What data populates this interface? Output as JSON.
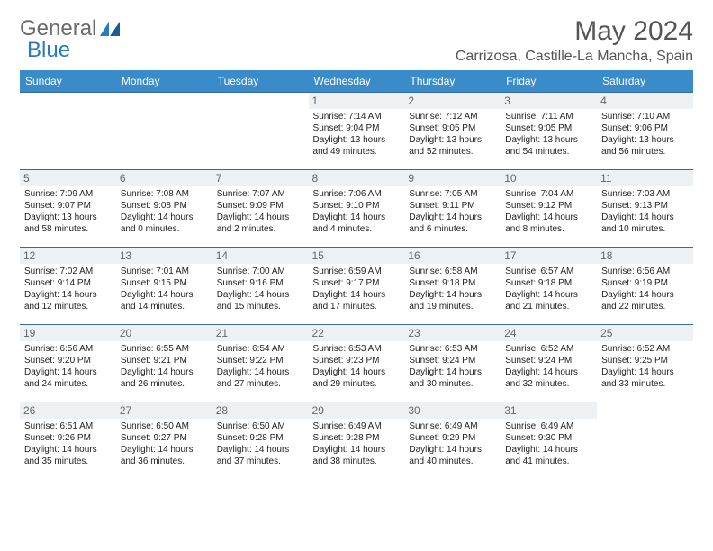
{
  "brand": {
    "part1": "General",
    "part2": "Blue"
  },
  "title": "May 2024",
  "location": "Carrizosa, Castille-La Mancha, Spain",
  "colors": {
    "header_bg": "#3a8bc9",
    "header_text": "#ffffff",
    "row_border": "#3a6a9a",
    "daynum_bg": "#eef1f3",
    "daynum_text": "#666666",
    "body_text": "#222222",
    "brand_gray": "#6b6b6b",
    "brand_blue": "#2a7abf"
  },
  "weekdays": [
    "Sunday",
    "Monday",
    "Tuesday",
    "Wednesday",
    "Thursday",
    "Friday",
    "Saturday"
  ],
  "weeks": [
    [
      {
        "day": "",
        "sunrise": "",
        "sunset": "",
        "daylight": ""
      },
      {
        "day": "",
        "sunrise": "",
        "sunset": "",
        "daylight": ""
      },
      {
        "day": "",
        "sunrise": "",
        "sunset": "",
        "daylight": ""
      },
      {
        "day": "1",
        "sunrise": "Sunrise: 7:14 AM",
        "sunset": "Sunset: 9:04 PM",
        "daylight": "Daylight: 13 hours and 49 minutes."
      },
      {
        "day": "2",
        "sunrise": "Sunrise: 7:12 AM",
        "sunset": "Sunset: 9:05 PM",
        "daylight": "Daylight: 13 hours and 52 minutes."
      },
      {
        "day": "3",
        "sunrise": "Sunrise: 7:11 AM",
        "sunset": "Sunset: 9:05 PM",
        "daylight": "Daylight: 13 hours and 54 minutes."
      },
      {
        "day": "4",
        "sunrise": "Sunrise: 7:10 AM",
        "sunset": "Sunset: 9:06 PM",
        "daylight": "Daylight: 13 hours and 56 minutes."
      }
    ],
    [
      {
        "day": "5",
        "sunrise": "Sunrise: 7:09 AM",
        "sunset": "Sunset: 9:07 PM",
        "daylight": "Daylight: 13 hours and 58 minutes."
      },
      {
        "day": "6",
        "sunrise": "Sunrise: 7:08 AM",
        "sunset": "Sunset: 9:08 PM",
        "daylight": "Daylight: 14 hours and 0 minutes."
      },
      {
        "day": "7",
        "sunrise": "Sunrise: 7:07 AM",
        "sunset": "Sunset: 9:09 PM",
        "daylight": "Daylight: 14 hours and 2 minutes."
      },
      {
        "day": "8",
        "sunrise": "Sunrise: 7:06 AM",
        "sunset": "Sunset: 9:10 PM",
        "daylight": "Daylight: 14 hours and 4 minutes."
      },
      {
        "day": "9",
        "sunrise": "Sunrise: 7:05 AM",
        "sunset": "Sunset: 9:11 PM",
        "daylight": "Daylight: 14 hours and 6 minutes."
      },
      {
        "day": "10",
        "sunrise": "Sunrise: 7:04 AM",
        "sunset": "Sunset: 9:12 PM",
        "daylight": "Daylight: 14 hours and 8 minutes."
      },
      {
        "day": "11",
        "sunrise": "Sunrise: 7:03 AM",
        "sunset": "Sunset: 9:13 PM",
        "daylight": "Daylight: 14 hours and 10 minutes."
      }
    ],
    [
      {
        "day": "12",
        "sunrise": "Sunrise: 7:02 AM",
        "sunset": "Sunset: 9:14 PM",
        "daylight": "Daylight: 14 hours and 12 minutes."
      },
      {
        "day": "13",
        "sunrise": "Sunrise: 7:01 AM",
        "sunset": "Sunset: 9:15 PM",
        "daylight": "Daylight: 14 hours and 14 minutes."
      },
      {
        "day": "14",
        "sunrise": "Sunrise: 7:00 AM",
        "sunset": "Sunset: 9:16 PM",
        "daylight": "Daylight: 14 hours and 15 minutes."
      },
      {
        "day": "15",
        "sunrise": "Sunrise: 6:59 AM",
        "sunset": "Sunset: 9:17 PM",
        "daylight": "Daylight: 14 hours and 17 minutes."
      },
      {
        "day": "16",
        "sunrise": "Sunrise: 6:58 AM",
        "sunset": "Sunset: 9:18 PM",
        "daylight": "Daylight: 14 hours and 19 minutes."
      },
      {
        "day": "17",
        "sunrise": "Sunrise: 6:57 AM",
        "sunset": "Sunset: 9:18 PM",
        "daylight": "Daylight: 14 hours and 21 minutes."
      },
      {
        "day": "18",
        "sunrise": "Sunrise: 6:56 AM",
        "sunset": "Sunset: 9:19 PM",
        "daylight": "Daylight: 14 hours and 22 minutes."
      }
    ],
    [
      {
        "day": "19",
        "sunrise": "Sunrise: 6:56 AM",
        "sunset": "Sunset: 9:20 PM",
        "daylight": "Daylight: 14 hours and 24 minutes."
      },
      {
        "day": "20",
        "sunrise": "Sunrise: 6:55 AM",
        "sunset": "Sunset: 9:21 PM",
        "daylight": "Daylight: 14 hours and 26 minutes."
      },
      {
        "day": "21",
        "sunrise": "Sunrise: 6:54 AM",
        "sunset": "Sunset: 9:22 PM",
        "daylight": "Daylight: 14 hours and 27 minutes."
      },
      {
        "day": "22",
        "sunrise": "Sunrise: 6:53 AM",
        "sunset": "Sunset: 9:23 PM",
        "daylight": "Daylight: 14 hours and 29 minutes."
      },
      {
        "day": "23",
        "sunrise": "Sunrise: 6:53 AM",
        "sunset": "Sunset: 9:24 PM",
        "daylight": "Daylight: 14 hours and 30 minutes."
      },
      {
        "day": "24",
        "sunrise": "Sunrise: 6:52 AM",
        "sunset": "Sunset: 9:24 PM",
        "daylight": "Daylight: 14 hours and 32 minutes."
      },
      {
        "day": "25",
        "sunrise": "Sunrise: 6:52 AM",
        "sunset": "Sunset: 9:25 PM",
        "daylight": "Daylight: 14 hours and 33 minutes."
      }
    ],
    [
      {
        "day": "26",
        "sunrise": "Sunrise: 6:51 AM",
        "sunset": "Sunset: 9:26 PM",
        "daylight": "Daylight: 14 hours and 35 minutes."
      },
      {
        "day": "27",
        "sunrise": "Sunrise: 6:50 AM",
        "sunset": "Sunset: 9:27 PM",
        "daylight": "Daylight: 14 hours and 36 minutes."
      },
      {
        "day": "28",
        "sunrise": "Sunrise: 6:50 AM",
        "sunset": "Sunset: 9:28 PM",
        "daylight": "Daylight: 14 hours and 37 minutes."
      },
      {
        "day": "29",
        "sunrise": "Sunrise: 6:49 AM",
        "sunset": "Sunset: 9:28 PM",
        "daylight": "Daylight: 14 hours and 38 minutes."
      },
      {
        "day": "30",
        "sunrise": "Sunrise: 6:49 AM",
        "sunset": "Sunset: 9:29 PM",
        "daylight": "Daylight: 14 hours and 40 minutes."
      },
      {
        "day": "31",
        "sunrise": "Sunrise: 6:49 AM",
        "sunset": "Sunset: 9:30 PM",
        "daylight": "Daylight: 14 hours and 41 minutes."
      },
      {
        "day": "",
        "sunrise": "",
        "sunset": "",
        "daylight": ""
      }
    ]
  ]
}
